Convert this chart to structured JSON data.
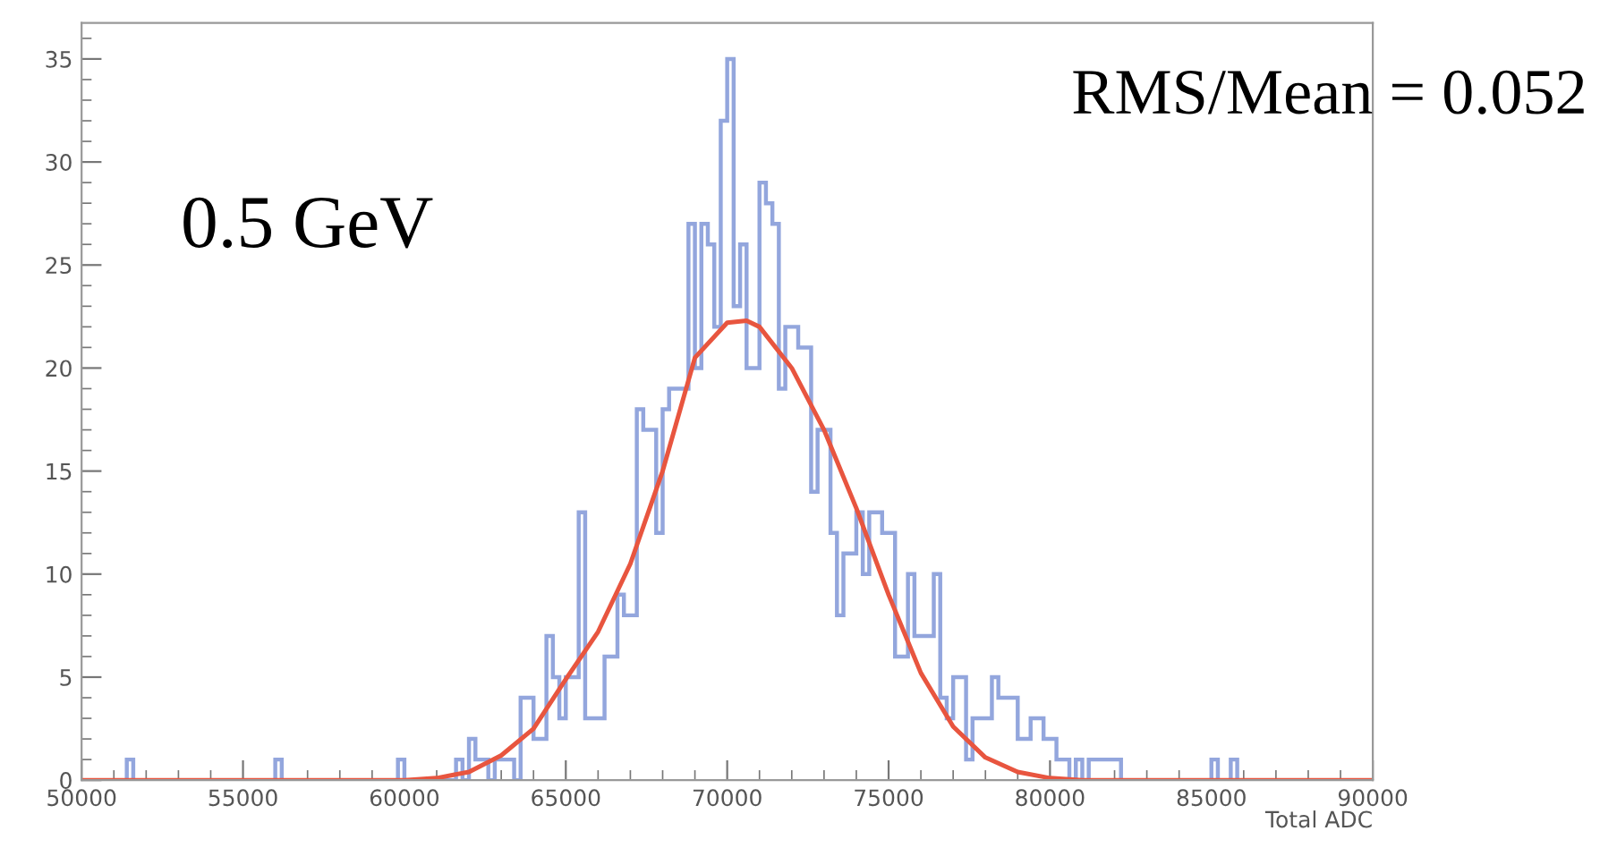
{
  "chart_data": {
    "type": "histogram",
    "xlabel": "Total ADC",
    "annotations": [
      "0.5 GeV",
      "RMS/Mean = 0.052"
    ],
    "bins": [
      50000,
      51400,
      51600,
      56000,
      56200,
      59800,
      60000,
      61600,
      61800,
      62000,
      62200,
      62400,
      62600,
      62800,
      63000,
      63200,
      63400,
      63600,
      63800,
      64000,
      64200,
      64400,
      64600,
      64800,
      65000,
      65200,
      65400,
      65600,
      65800,
      66000,
      66200,
      66400,
      66600,
      66800,
      67000,
      67200,
      67400,
      67600,
      67800,
      68000,
      68200,
      68400,
      68600,
      68800,
      69000,
      69200,
      69400,
      69600,
      69800,
      70000,
      70200,
      70400,
      70600,
      70800,
      71000,
      71200,
      71400,
      71600,
      71800,
      72000,
      72200,
      72400,
      72600,
      72800,
      73000,
      73200,
      73400,
      73600,
      73800,
      74000,
      74200,
      74400,
      74600,
      74800,
      75000,
      75200,
      75400,
      75600,
      75800,
      76000,
      76200,
      76400,
      76600,
      76800,
      77000,
      77200,
      77400,
      77600,
      77800,
      78000,
      78200,
      78400,
      78600,
      78800,
      79000,
      79200,
      79400,
      79600,
      79800,
      80000,
      80200,
      80400,
      80600,
      80800,
      81000,
      81200,
      81400,
      81600,
      81800,
      82000,
      82200,
      85000,
      85200,
      85600,
      85800,
      90000
    ],
    "values": [
      0,
      1,
      0,
      1,
      0,
      1,
      0,
      1,
      0,
      2,
      1,
      1,
      0,
      1,
      1,
      1,
      0,
      4,
      4,
      2,
      2,
      7,
      5,
      3,
      5,
      5,
      13,
      3,
      3,
      3,
      6,
      6,
      9,
      8,
      8,
      18,
      17,
      17,
      12,
      18,
      19,
      19,
      19,
      27,
      20,
      27,
      26,
      22,
      32,
      35,
      23,
      26,
      20,
      20,
      29,
      28,
      27,
      19,
      22,
      22,
      21,
      21,
      14,
      17,
      17,
      12,
      8,
      11,
      11,
      13,
      10,
      13,
      13,
      12,
      12,
      6,
      6,
      10,
      7,
      7,
      7,
      10,
      4,
      3,
      5,
      5,
      1,
      3,
      3,
      3,
      5,
      4,
      4,
      4,
      2,
      2,
      3,
      3,
      2,
      2,
      1,
      1,
      0,
      1,
      0,
      1,
      1,
      1,
      1,
      1,
      0,
      1,
      0,
      1,
      0
    ],
    "color": "#93a6dd",
    "series": [
      {
        "type": "line",
        "color": "#e8553f",
        "x": [
          50000,
          60000,
          61000,
          62000,
          63000,
          64000,
          65000,
          66000,
          67000,
          68000,
          69000,
          70000,
          70600,
          71000,
          72000,
          73000,
          74000,
          75000,
          76000,
          77000,
          78000,
          79000,
          80000,
          81000,
          90000
        ],
        "values": [
          0,
          0,
          0.1,
          0.4,
          1.2,
          2.5,
          4.9,
          7.2,
          10.5,
          15,
          20.5,
          22.2,
          22.3,
          22,
          20,
          17,
          13.2,
          9,
          5.2,
          2.6,
          1.1,
          0.4,
          0.1,
          0,
          0
        ]
      }
    ],
    "xlim": [
      50000,
      90000
    ],
    "xticks": [
      50000,
      55000,
      60000,
      65000,
      70000,
      75000,
      80000,
      85000,
      90000
    ],
    "ylim": [
      0,
      36.75
    ],
    "yticks": [
      0,
      5,
      10,
      15,
      20,
      25,
      30,
      35
    ]
  }
}
